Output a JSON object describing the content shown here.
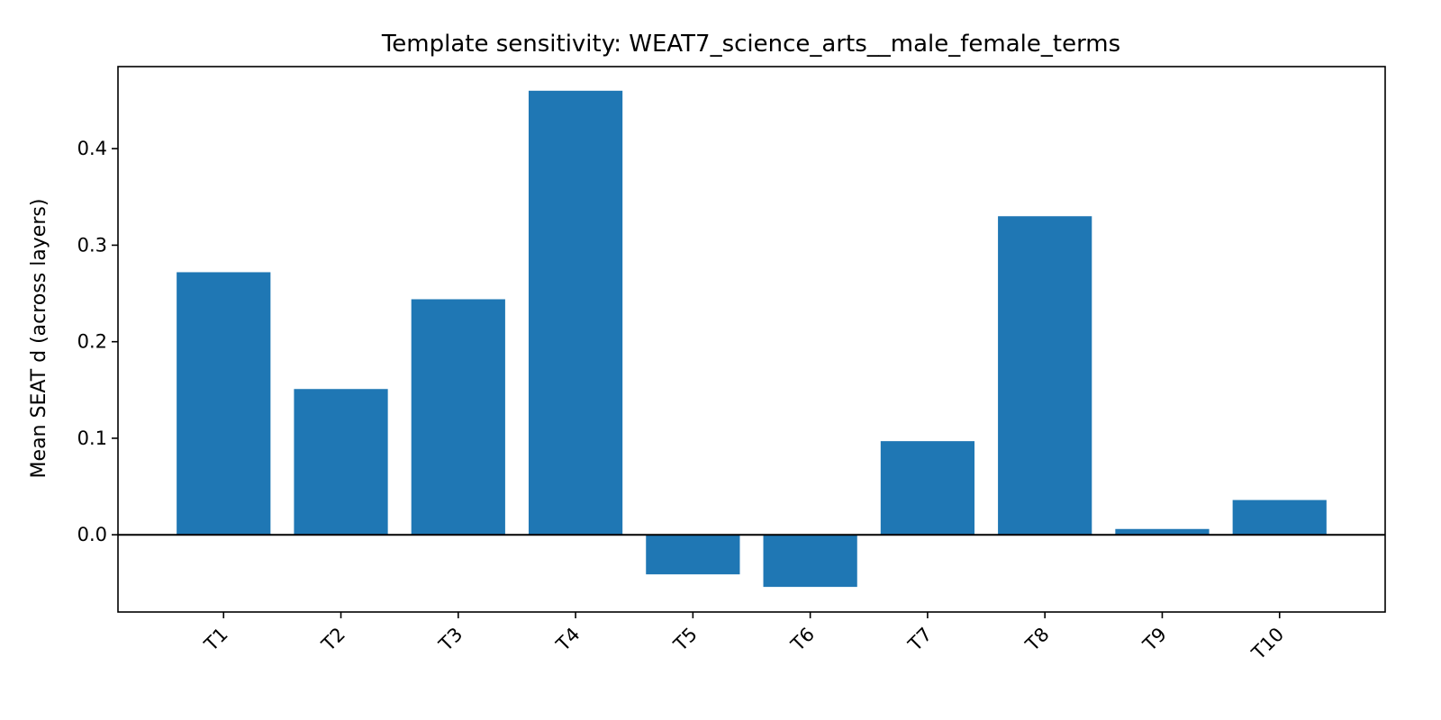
{
  "chart_data": {
    "type": "bar",
    "title": "Template sensitivity: WEAT7_science_arts__male_female_terms",
    "xlabel": "",
    "ylabel": "Mean SEAT d (across layers)",
    "categories": [
      "T1",
      "T2",
      "T3",
      "T4",
      "T5",
      "T6",
      "T7",
      "T8",
      "T9",
      "T10"
    ],
    "values": [
      0.272,
      0.151,
      0.244,
      0.46,
      -0.041,
      -0.054,
      0.097,
      0.33,
      0.006,
      0.036
    ],
    "ylim": [
      -0.08,
      0.485
    ],
    "yticks": [
      0.0,
      0.1,
      0.2,
      0.3,
      0.4
    ],
    "ytick_labels": [
      "0.0",
      "0.1",
      "0.2",
      "0.3",
      "0.4"
    ],
    "bar_color": "#1f77b4",
    "zero_line": true,
    "grid": false,
    "legend": "none"
  }
}
